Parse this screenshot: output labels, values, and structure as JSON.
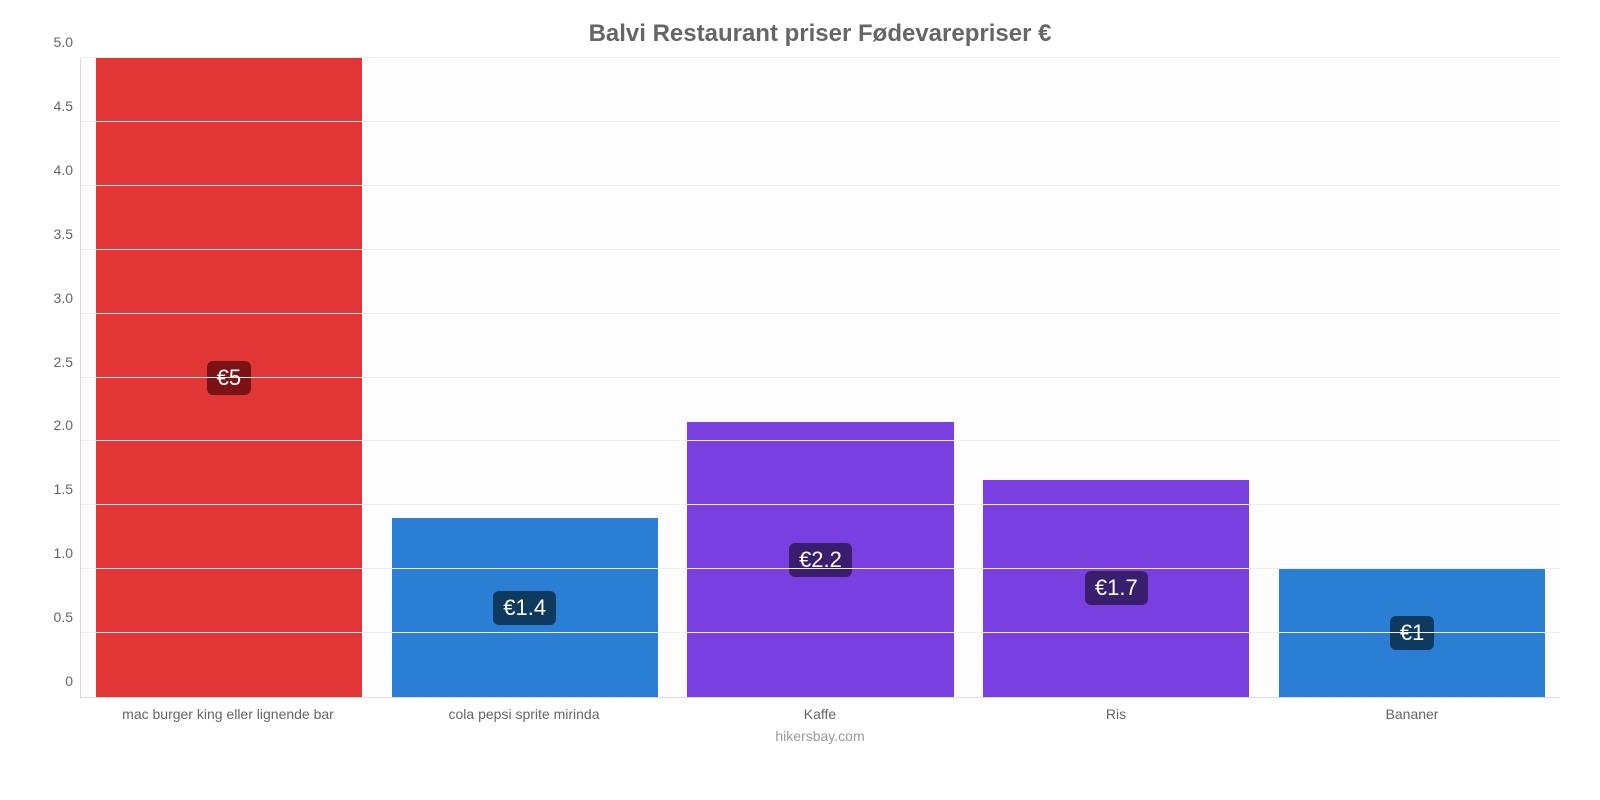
{
  "chart": {
    "type": "bar",
    "title": "Balvi Restaurant priser Fødevarepriser €",
    "title_color": "#666666",
    "title_fontsize": 24,
    "attribution": "hikersbay.com",
    "attribution_color": "#999999",
    "attribution_fontsize": 14,
    "background_color": "#fdfdfd",
    "grid_color": "#eeeeee",
    "axis_color": "#dddddd",
    "tick_label_color": "#666666",
    "tick_fontsize": 14,
    "xlabel_fontsize": 14,
    "ylim_min": 0,
    "ylim_max": 5.0,
    "ytick_step": 0.5,
    "yticks": [
      "0",
      "0.5",
      "1.0",
      "1.5",
      "2.0",
      "2.5",
      "3.0",
      "3.5",
      "4.0",
      "4.5",
      "5.0"
    ],
    "bar_width_pct": 90,
    "value_badge_fontsize": 22,
    "value_badge_radius": 6,
    "categories": [
      {
        "label": "mac burger king eller lignende bar",
        "value": 5.0,
        "value_label": "€5",
        "color": "#e23636",
        "badge_bg": "#7a1414"
      },
      {
        "label": "cola pepsi sprite mirinda",
        "value": 1.4,
        "value_label": "€1.4",
        "color": "#2a7fd4",
        "badge_bg": "#0f3a5f"
      },
      {
        "label": "Kaffe",
        "value": 2.15,
        "value_label": "€2.2",
        "color": "#7a3fe0",
        "badge_bg": "#3a1e6e"
      },
      {
        "label": "Ris",
        "value": 1.7,
        "value_label": "€1.7",
        "color": "#7a3fe0",
        "badge_bg": "#3a1e6e"
      },
      {
        "label": "Bananer",
        "value": 1.0,
        "value_label": "€1",
        "color": "#2a7fd4",
        "badge_bg": "#0f3a5f"
      }
    ]
  }
}
